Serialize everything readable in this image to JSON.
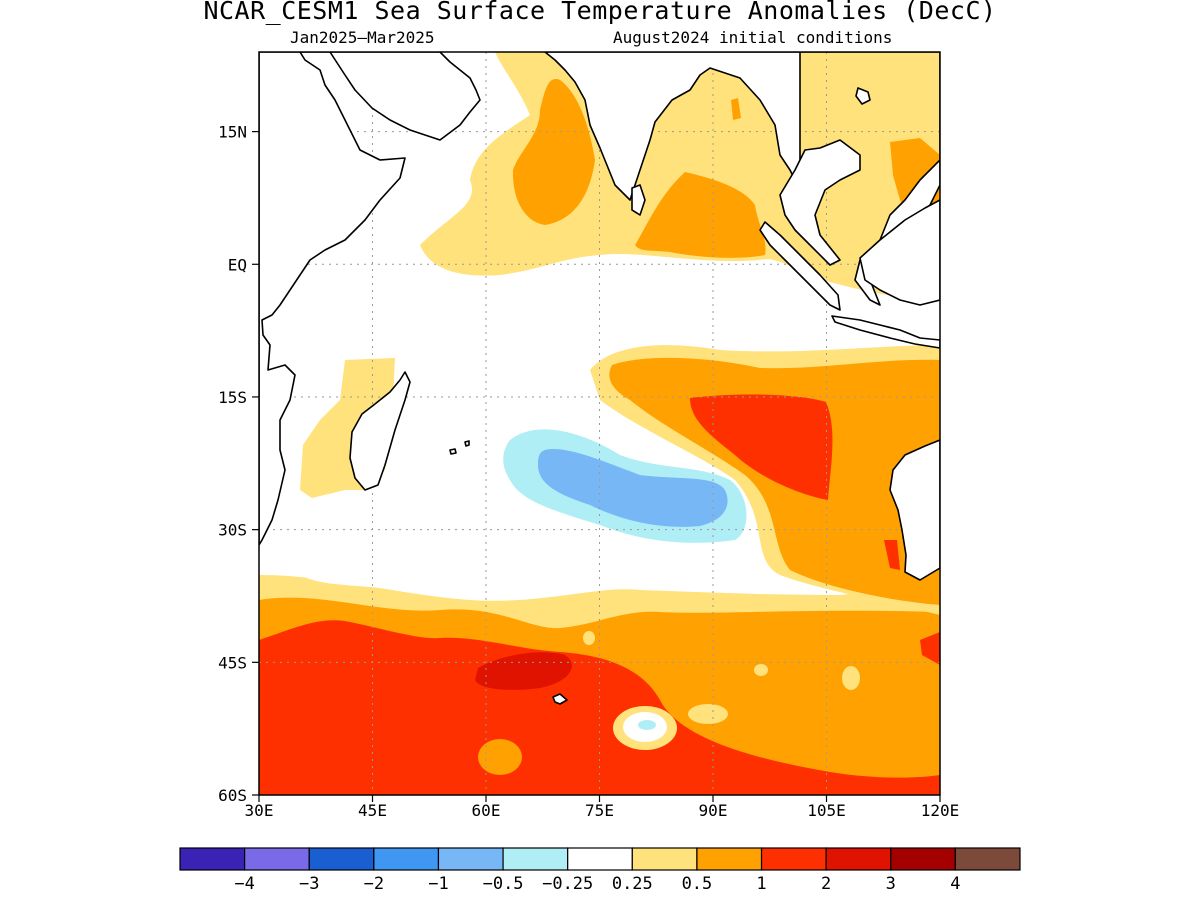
{
  "title": "NCAR_CESM1 Sea Surface Temperature Anomalies (DecC)",
  "subtitle_left": "Jan2025–Mar2025",
  "subtitle_right": "August2024 initial conditions",
  "map": {
    "lon_range": [
      30,
      120
    ],
    "lat_range": [
      -60,
      24
    ],
    "x_ticks": [
      {
        "lon": 30,
        "label": "30E"
      },
      {
        "lon": 45,
        "label": "45E"
      },
      {
        "lon": 60,
        "label": "60E"
      },
      {
        "lon": 75,
        "label": "75E"
      },
      {
        "lon": 90,
        "label": "90E"
      },
      {
        "lon": 105,
        "label": "105E"
      },
      {
        "lon": 120,
        "label": "120E"
      }
    ],
    "y_ticks": [
      {
        "lat": 15,
        "label": "15N"
      },
      {
        "lat": 0,
        "label": "EQ"
      },
      {
        "lat": -15,
        "label": "15S"
      },
      {
        "lat": -30,
        "label": "30S"
      },
      {
        "lat": -45,
        "label": "45S"
      },
      {
        "lat": -60,
        "label": "60S"
      }
    ],
    "grid": true,
    "ocean_color": "#ffffff",
    "land_color": "#ffffff",
    "coast_color": "#000000"
  },
  "colorbar": {
    "colors": [
      "#3a22b4",
      "#7b6ae8",
      "#1a5fd1",
      "#3f97f2",
      "#78b7f6",
      "#b0eef6",
      "#ffffff",
      "#ffe27b",
      "#ffa100",
      "#ff3000",
      "#e01200",
      "#a50000",
      "#7c4a3a"
    ],
    "labels": [
      "−4",
      "−3",
      "−2",
      "−1",
      "−0.5",
      "−0.25",
      "0.25",
      "0.5",
      "1",
      "2",
      "3",
      "4"
    ]
  },
  "legend": {
    "anomaly_bands": [
      {
        "range": "< −4",
        "color": "#3a22b4"
      },
      {
        "range": "−0.5 to −0.25",
        "color": "#b0eef6"
      },
      {
        "range": "−1 to −0.5",
        "color": "#78b7f6"
      },
      {
        "range": "−0.25 to 0.25",
        "color": "#ffffff"
      },
      {
        "range": "0.25 to 0.5",
        "color": "#ffe27b"
      },
      {
        "range": "0.5 to 1",
        "color": "#ffa100"
      },
      {
        "range": "1 to 2",
        "color": "#ff3000"
      },
      {
        "range": "2 to 3",
        "color": "#e01200"
      }
    ]
  }
}
